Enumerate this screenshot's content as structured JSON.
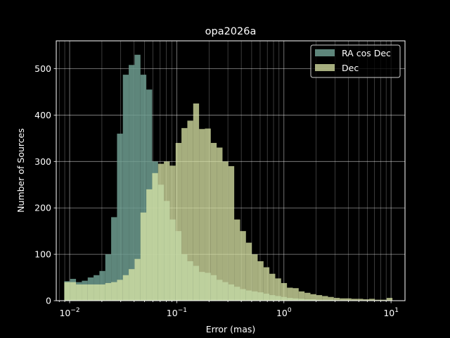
{
  "chart_data": {
    "type": "histogram",
    "title": "opa2026a",
    "xlabel": "Error (mas)",
    "ylabel": "Number of Sources",
    "x_scale": "log",
    "xlim": [
      0.0075,
      13.5
    ],
    "ylim": [
      0,
      560
    ],
    "grid": {
      "major": true,
      "minor_x": true
    },
    "legend_position": "top-right",
    "x_ticks": [
      {
        "value": 0.01,
        "base": "10",
        "exp": "−2"
      },
      {
        "value": 0.1,
        "base": "10",
        "exp": "−1"
      },
      {
        "value": 1,
        "base": "10",
        "exp": "0"
      },
      {
        "value": 10,
        "base": "10",
        "exp": "1"
      }
    ],
    "y_ticks": [
      0,
      100,
      200,
      300,
      400,
      500
    ],
    "bin_edges_log10": [
      -2.05,
      -1.9953,
      -1.9406,
      -1.8859,
      -1.8312,
      -1.7765,
      -1.7218,
      -1.6671,
      -1.6124,
      -1.5577,
      -1.503,
      -1.4483,
      -1.3936,
      -1.3389,
      -1.2842,
      -1.2295,
      -1.1748,
      -1.1201,
      -1.0654,
      -1.0107,
      -0.956,
      -0.9013,
      -0.8466,
      -0.7919,
      -0.7372,
      -0.6825,
      -0.6278,
      -0.5731,
      -0.5184,
      -0.4637,
      -0.409,
      -0.3543,
      -0.2996,
      -0.2449,
      -0.1902,
      -0.1355,
      -0.0808,
      -0.0261,
      0.0286,
      0.0833,
      0.138,
      0.1927,
      0.2474,
      0.3021,
      0.3568,
      0.4115,
      0.4662,
      0.5209,
      0.5756,
      0.6303,
      0.685,
      0.7397,
      0.7944,
      0.8491,
      0.9038,
      0.9585,
      1.0132
    ],
    "series": [
      {
        "name": "RA cos Dec",
        "color": "#6e9d90",
        "values": [
          42,
          47,
          40,
          43,
          50,
          55,
          64,
          100,
          180,
          360,
          487,
          508,
          530,
          487,
          455,
          300,
          250,
          215,
          175,
          150,
          100,
          85,
          75,
          62,
          60,
          55,
          45,
          40,
          35,
          30,
          25,
          22,
          20,
          18,
          15,
          12,
          10,
          8,
          6,
          5,
          4,
          3,
          3,
          2,
          2,
          2,
          1,
          1,
          1,
          1,
          0,
          0,
          0,
          0,
          0,
          0
        ]
      },
      {
        "name": "Dec",
        "color": "#dde8a8",
        "values": [
          40,
          40,
          35,
          35,
          35,
          35,
          35,
          38,
          40,
          45,
          55,
          68,
          90,
          190,
          240,
          275,
          295,
          300,
          291,
          340,
          372,
          388,
          425,
          370,
          371,
          340,
          330,
          300,
          290,
          175,
          150,
          125,
          100,
          85,
          72,
          58,
          48,
          38,
          28,
          27,
          20,
          17,
          14,
          12,
          10,
          8,
          6,
          5,
          5,
          4,
          4,
          3,
          4,
          2,
          2,
          6
        ]
      }
    ]
  }
}
